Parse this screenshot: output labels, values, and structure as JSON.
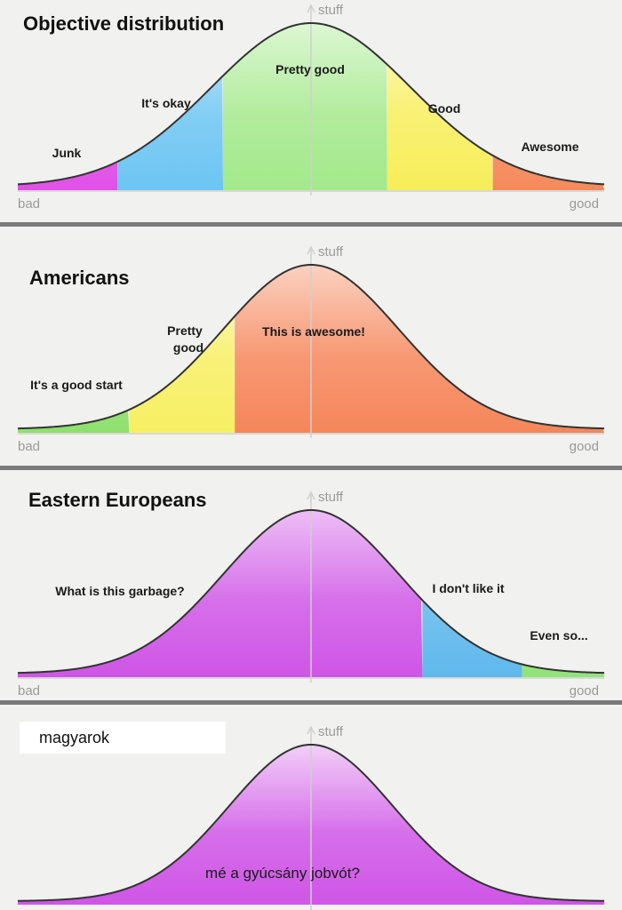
{
  "axis": {
    "y_label": "stuff",
    "x_left": "bad",
    "x_right": "good"
  },
  "panels": [
    {
      "title": "Objective distribution",
      "segments": [
        {
          "label": "Junk",
          "from": 0,
          "to": 0.17,
          "color": "#e050e8"
        },
        {
          "label": "It's okay",
          "from": 0.17,
          "to": 0.35,
          "color": "#6cc5f2"
        },
        {
          "label": "Pretty good",
          "from": 0.35,
          "to": 0.63,
          "color": "#a3e98a"
        },
        {
          "label": "Good",
          "from": 0.63,
          "to": 0.81,
          "color": "#f7ee5a"
        },
        {
          "label": "Awesome",
          "from": 0.81,
          "to": 1,
          "color": "#f58a5c"
        }
      ]
    },
    {
      "title": "Americans",
      "segments": [
        {
          "label": "It's a good start",
          "from": 0,
          "to": 0.19,
          "color": "#8fe06e"
        },
        {
          "label": "Pretty good",
          "from": 0.19,
          "to": 0.37,
          "color": "#f7ef62"
        },
        {
          "label": "This is awesome!",
          "from": 0.37,
          "to": 1,
          "color": "#f5865a"
        }
      ]
    },
    {
      "title": "Eastern Europeans",
      "segments": [
        {
          "label": "What is this garbage?",
          "from": 0,
          "to": 0.69,
          "color": "#cf55e6"
        },
        {
          "label": "I don't like it",
          "from": 0.69,
          "to": 0.86,
          "color": "#5fb8ec"
        },
        {
          "label": "Even so...",
          "from": 0.86,
          "to": 1,
          "color": "#8fe579"
        }
      ]
    },
    {
      "title": "magyarok",
      "caption": "mé a gyúcsány jobvót?",
      "segments": [
        {
          "label": "",
          "from": 0,
          "to": 1,
          "color": "#cf55e6"
        }
      ]
    }
  ]
}
